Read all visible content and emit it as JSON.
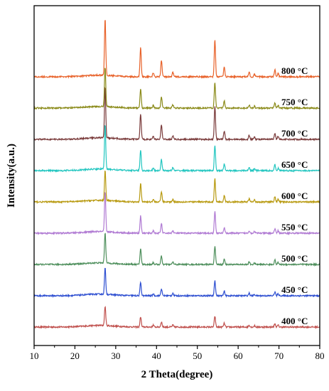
{
  "chart_data": {
    "type": "line",
    "title": "",
    "xlabel": "2 Theta(degree)",
    "ylabel": "Intensity(a.u.)",
    "xlim": [
      10,
      80
    ],
    "xticks": [
      10,
      20,
      30,
      40,
      50,
      60,
      70,
      80
    ],
    "y_ticks_shown": false,
    "grid": false,
    "legend": "none (series labels printed at right end of each trace)",
    "peaks_2theta": [
      27.4,
      36.1,
      39.2,
      41.2,
      44.0,
      54.3,
      56.6,
      62.7,
      64.0,
      69.0,
      69.8
    ],
    "series": [
      {
        "name": "400 °C",
        "color": "#c0504d",
        "baseline": 0.0,
        "peak_heights": [
          30,
          16,
          3,
          8,
          3,
          17,
          6,
          3,
          2,
          5,
          3
        ]
      },
      {
        "name": "450 °C",
        "color": "#2e4fd1",
        "baseline": 1.0,
        "peak_heights": [
          41,
          21,
          3,
          11,
          4,
          24,
          7,
          4,
          2,
          6,
          3
        ]
      },
      {
        "name": "500 °C",
        "color": "#4e8f5c",
        "baseline": 2.0,
        "peak_heights": [
          48,
          25,
          3,
          13,
          4,
          28,
          8,
          4,
          2,
          7,
          3
        ]
      },
      {
        "name": "550 °C",
        "color": "#b07ad3",
        "baseline": 3.0,
        "peak_heights": [
          62,
          27,
          4,
          15,
          4,
          34,
          9,
          4,
          3,
          7,
          4
        ]
      },
      {
        "name": "600 °C",
        "color": "#b89a10",
        "baseline": 4.0,
        "peak_heights": [
          47,
          29,
          4,
          16,
          4,
          36,
          10,
          5,
          3,
          8,
          4
        ]
      },
      {
        "name": "650 °C",
        "color": "#23c6c0",
        "baseline": 5.0,
        "peak_heights": [
          70,
          32,
          4,
          18,
          5,
          40,
          11,
          5,
          3,
          9,
          4
        ]
      },
      {
        "name": "700 °C",
        "color": "#7a3b3b",
        "baseline": 6.0,
        "peak_heights": [
          80,
          40,
          5,
          23,
          6,
          52,
          13,
          6,
          4,
          10,
          5
        ]
      },
      {
        "name": "750 °C",
        "color": "#8a8a18",
        "baseline": 7.0,
        "peak_heights": [
          62,
          30,
          4,
          18,
          5,
          40,
          11,
          5,
          3,
          8,
          4
        ]
      },
      {
        "name": "800 °C",
        "color": "#e8622a",
        "baseline": 8.0,
        "peak_heights": [
          88,
          46,
          6,
          26,
          7,
          58,
          15,
          7,
          4,
          11,
          5
        ]
      }
    ]
  }
}
